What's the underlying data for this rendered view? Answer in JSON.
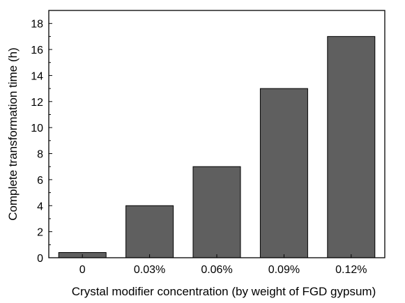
{
  "chart_data": {
    "type": "bar",
    "title": "",
    "xlabel": "Crystal modifier concentration (by weight of FGD gypsum)",
    "ylabel": "Complete transformation time (h)",
    "categories": [
      "0",
      "0.03%",
      "0.06%",
      "0.09%",
      "0.12%"
    ],
    "values": [
      0.4,
      4,
      7,
      13,
      17
    ],
    "ylim": [
      0,
      19
    ],
    "yticks": [
      0,
      2,
      4,
      6,
      8,
      10,
      12,
      14,
      16,
      18
    ],
    "grid": false,
    "legend": "none",
    "colors": {
      "bar_fill": "#5f5f5f",
      "bar_stroke": "#000000",
      "axis": "#000000"
    }
  }
}
